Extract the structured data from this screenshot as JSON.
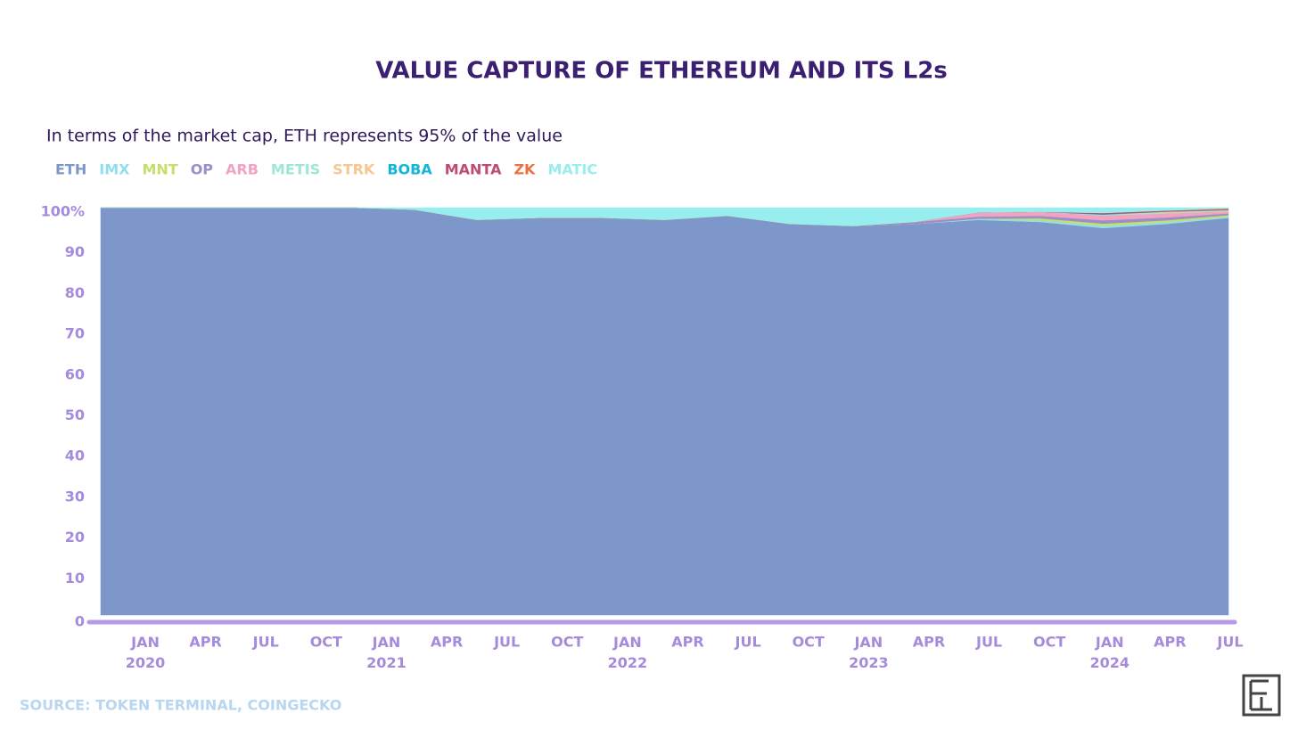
{
  "chart_data": {
    "type": "stacked-area",
    "title": "VALUE CAPTURE OF ETHEREUM AND ITS L2s",
    "subtitle": "In terms of the market cap, ETH represents 95% of the value",
    "source": "SOURCE: TOKEN TERMINAL, COINGECKO",
    "categories": [
      "JAN 2020",
      "APR",
      "JUL",
      "OCT",
      "JAN 2021",
      "APR",
      "JUL",
      "OCT",
      "JAN 2022",
      "APR",
      "JUL",
      "OCT",
      "JAN 2023",
      "APR",
      "JUL",
      "OCT",
      "JAN 2024",
      "APR",
      "JUL"
    ],
    "ylim": [
      0,
      100
    ],
    "yticks": [
      0,
      10,
      20,
      30,
      40,
      50,
      60,
      70,
      80,
      90,
      {
        "value": 100,
        "label": "100%"
      }
    ],
    "series": [
      {
        "name": "ETH",
        "color": "#7d97cb",
        "values": [
          100,
          100,
          100,
          100,
          100,
          99.5,
          97,
          97.5,
          97.5,
          97,
          98,
          96,
          95.5,
          96,
          97,
          96.5,
          95,
          96,
          97.5
        ]
      },
      {
        "name": "IMX",
        "color": "#8fdff0",
        "values": [
          0,
          0,
          0,
          0,
          0,
          0,
          0,
          0,
          0,
          0,
          0,
          0,
          0,
          0,
          0.3,
          0.4,
          0.5,
          0.4,
          0.3
        ]
      },
      {
        "name": "MNT",
        "color": "#c6de6a",
        "values": [
          0,
          0,
          0,
          0,
          0,
          0,
          0,
          0,
          0,
          0,
          0,
          0,
          0,
          0,
          0,
          0.5,
          0.6,
          0.5,
          0.4
        ]
      },
      {
        "name": "OP",
        "color": "#9a8fc8",
        "values": [
          0,
          0,
          0,
          0,
          0,
          0,
          0,
          0,
          0,
          0,
          0,
          0,
          0,
          0.5,
          0.5,
          0.6,
          0.8,
          0.7,
          0.4
        ]
      },
      {
        "name": "ARB",
        "color": "#f2a2c2",
        "values": [
          0,
          0,
          0,
          0,
          0,
          0,
          0,
          0,
          0,
          0,
          0,
          0,
          0,
          0,
          1,
          1,
          1.2,
          1,
          0.5
        ]
      },
      {
        "name": "METIS",
        "color": "#9ee6d6",
        "values": [
          0,
          0,
          0,
          0,
          0,
          0,
          0,
          0,
          0,
          0,
          0,
          0,
          0,
          0,
          0,
          0,
          0.2,
          0.1,
          0.1
        ]
      },
      {
        "name": "STRK",
        "color": "#f6c88e",
        "values": [
          0,
          0,
          0,
          0,
          0,
          0,
          0,
          0,
          0,
          0,
          0,
          0,
          0,
          0,
          0,
          0,
          0,
          0.3,
          0.2
        ]
      },
      {
        "name": "BOBA",
        "color": "#12b6d8",
        "values": [
          0,
          0,
          0,
          0,
          0,
          0,
          0,
          0,
          0,
          0,
          0,
          0,
          0,
          0,
          0,
          0,
          0.1,
          0.1,
          0.1
        ]
      },
      {
        "name": "MANTA",
        "color": "#c04a72",
        "values": [
          0,
          0,
          0,
          0,
          0,
          0,
          0,
          0,
          0,
          0,
          0,
          0,
          0,
          0,
          0,
          0,
          0.3,
          0.2,
          0.1
        ]
      },
      {
        "name": "ZK",
        "color": "#ee7040",
        "values": [
          0,
          0,
          0,
          0,
          0,
          0,
          0,
          0,
          0,
          0,
          0,
          0,
          0,
          0,
          0,
          0,
          0,
          0,
          0.2
        ]
      },
      {
        "name": "MATIC",
        "color": "#98eeee",
        "values": [
          0,
          0,
          0,
          0,
          0,
          0.5,
          3,
          2.5,
          2.5,
          3,
          2,
          4,
          4.5,
          3.5,
          1.2,
          1,
          1.3,
          0.7,
          0.2
        ]
      }
    ]
  }
}
